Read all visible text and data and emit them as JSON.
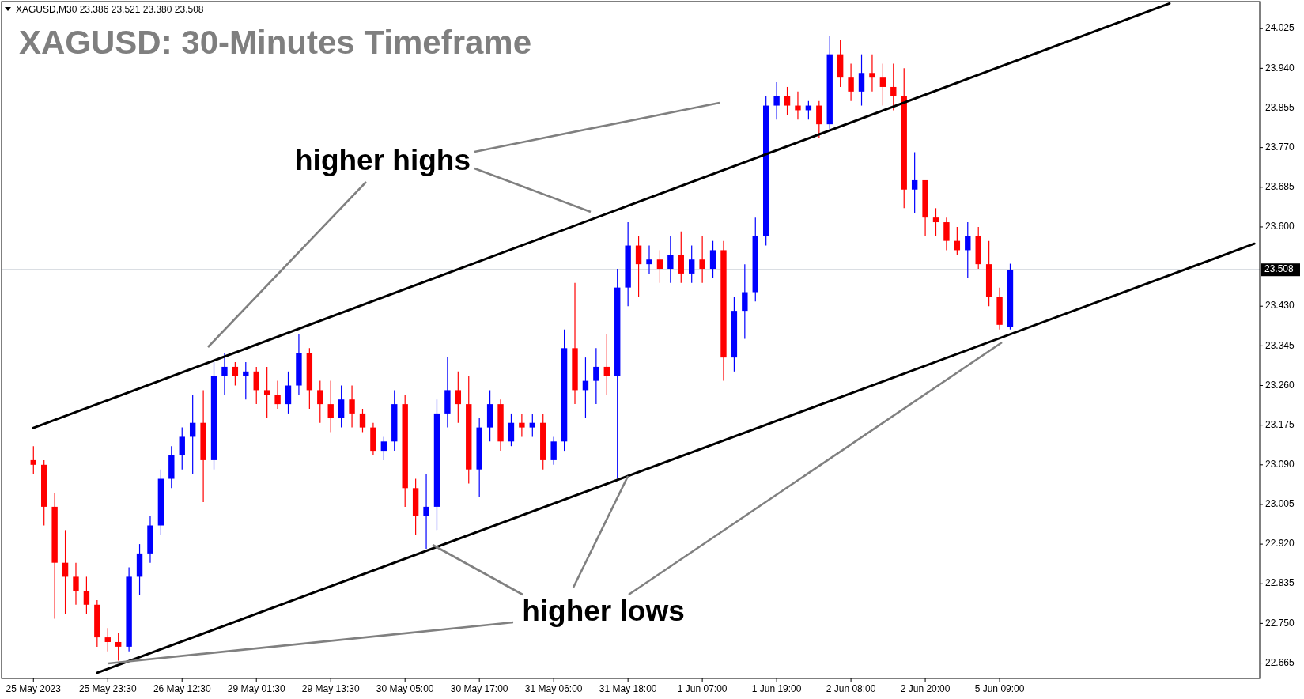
{
  "chart_data": {
    "type": "candlestick",
    "title": "XAGUSD: 30-Minutes Timeframe",
    "annotations": [
      "XAGUSD,M30  23.386 23.521 23.380 23.508",
      "higher highs",
      {
        "text": "higher lows",
        "x": "31 May 18:00",
        "y": 23.066
      }
    ],
    "categories": [
      "25 May 2023",
      null,
      null,
      null,
      null,
      null,
      null,
      "25 May 23:30",
      null,
      null,
      null,
      null,
      null,
      null,
      "26 May 12:30",
      null,
      null,
      null,
      null,
      null,
      null,
      "29 May 01:30",
      null,
      null,
      null,
      null,
      null,
      null,
      "29 May 13:30",
      null,
      null,
      null,
      null,
      null,
      null,
      "30 May 05:00",
      null,
      null,
      null,
      null,
      null,
      null,
      "30 May 17:00",
      null,
      null,
      null,
      null,
      null,
      null,
      "31 May 06:00",
      null,
      null,
      null,
      null,
      null,
      null,
      "31 May 18:00",
      null,
      null,
      null,
      null,
      null,
      null,
      "1 Jun 07:00",
      null,
      null,
      null,
      null,
      null,
      null,
      "1 Jun 19:00",
      null,
      null,
      null,
      null,
      null,
      null,
      "2 Jun 08:00",
      null,
      null,
      null,
      null,
      null,
      null,
      "2 Jun 20:00",
      null,
      null,
      null,
      null,
      null,
      null,
      "5 Jun 09:00",
      null,
      null,
      null,
      null,
      null,
      null,
      null,
      null,
      null,
      null,
      null,
      null,
      null,
      null,
      null,
      null,
      null,
      null,
      null,
      null,
      null,
      null,
      null,
      null
    ],
    "ohlc": [
      [
        23.1,
        23.13,
        23.07,
        23.09
      ],
      [
        23.09,
        23.1,
        22.96,
        23.0
      ],
      [
        23.0,
        23.03,
        22.76,
        22.88
      ],
      [
        22.88,
        22.95,
        22.77,
        22.85
      ],
      [
        22.85,
        22.88,
        22.79,
        22.82
      ],
      [
        22.82,
        22.85,
        22.77,
        22.79
      ],
      [
        22.79,
        22.8,
        22.7,
        22.72
      ],
      [
        22.72,
        22.74,
        22.69,
        22.71
      ],
      [
        22.71,
        22.73,
        22.67,
        22.7
      ],
      [
        22.7,
        22.87,
        22.69,
        22.85
      ],
      [
        22.85,
        22.92,
        22.81,
        22.9
      ],
      [
        22.9,
        22.98,
        22.88,
        22.96
      ],
      [
        22.96,
        23.08,
        22.94,
        23.06
      ],
      [
        23.06,
        23.13,
        23.04,
        23.11
      ],
      [
        23.11,
        23.17,
        23.08,
        23.15
      ],
      [
        23.15,
        23.24,
        23.07,
        23.18
      ],
      [
        23.18,
        23.25,
        23.01,
        23.1
      ],
      [
        23.1,
        23.31,
        23.08,
        23.28
      ],
      [
        23.28,
        23.33,
        23.24,
        23.3
      ],
      [
        23.3,
        23.31,
        23.26,
        23.28
      ],
      [
        23.28,
        23.31,
        23.23,
        23.29
      ],
      [
        23.29,
        23.3,
        23.22,
        23.25
      ],
      [
        23.25,
        23.3,
        23.19,
        23.24
      ],
      [
        23.24,
        23.27,
        23.21,
        23.22
      ],
      [
        23.22,
        23.29,
        23.2,
        23.26
      ],
      [
        23.26,
        23.37,
        23.24,
        23.33
      ],
      [
        23.33,
        23.34,
        23.21,
        23.25
      ],
      [
        23.25,
        23.27,
        23.18,
        23.22
      ],
      [
        23.22,
        23.27,
        23.16,
        23.19
      ],
      [
        23.19,
        23.26,
        23.17,
        23.23
      ],
      [
        23.23,
        23.26,
        23.17,
        23.2
      ],
      [
        23.2,
        23.21,
        23.16,
        23.17
      ],
      [
        23.17,
        23.18,
        23.11,
        23.12
      ],
      [
        23.12,
        23.15,
        23.1,
        23.14
      ],
      [
        23.14,
        23.25,
        23.12,
        23.22
      ],
      [
        23.22,
        23.24,
        23.0,
        23.04
      ],
      [
        23.04,
        23.06,
        22.94,
        22.98
      ],
      [
        22.98,
        23.07,
        22.91,
        23.0
      ],
      [
        23.0,
        23.23,
        22.95,
        23.2
      ],
      [
        23.2,
        23.32,
        23.17,
        23.25
      ],
      [
        23.25,
        23.29,
        23.18,
        23.22
      ],
      [
        23.22,
        23.28,
        23.05,
        23.08
      ],
      [
        23.08,
        23.19,
        23.02,
        23.17
      ],
      [
        23.17,
        23.25,
        23.14,
        23.22
      ],
      [
        23.22,
        23.23,
        23.12,
        23.14
      ],
      [
        23.14,
        23.2,
        23.13,
        23.18
      ],
      [
        23.18,
        23.2,
        23.15,
        23.17
      ],
      [
        23.17,
        23.2,
        23.15,
        23.18
      ],
      [
        23.18,
        23.2,
        23.08,
        23.1
      ],
      [
        23.1,
        23.15,
        23.09,
        23.14
      ],
      [
        23.14,
        23.38,
        23.12,
        23.34
      ],
      [
        23.34,
        23.48,
        23.22,
        23.25
      ],
      [
        23.25,
        23.32,
        23.19,
        23.27
      ],
      [
        23.27,
        23.34,
        23.22,
        23.3
      ],
      [
        23.3,
        23.37,
        23.24,
        23.28
      ],
      [
        23.28,
        23.51,
        23.06,
        23.47
      ],
      [
        23.47,
        23.61,
        23.43,
        23.56
      ],
      [
        23.56,
        23.58,
        23.45,
        23.52
      ],
      [
        23.52,
        23.56,
        23.5,
        23.53
      ],
      [
        23.53,
        23.55,
        23.48,
        23.51
      ],
      [
        23.51,
        23.58,
        23.48,
        23.54
      ],
      [
        23.54,
        23.59,
        23.48,
        23.5
      ],
      [
        23.5,
        23.56,
        23.48,
        23.53
      ],
      [
        23.53,
        23.58,
        23.48,
        23.51
      ],
      [
        23.51,
        23.57,
        23.49,
        23.55
      ],
      [
        23.55,
        23.57,
        23.27,
        23.32
      ],
      [
        23.32,
        23.45,
        23.29,
        23.42
      ],
      [
        23.42,
        23.52,
        23.36,
        23.46
      ],
      [
        23.46,
        23.62,
        23.44,
        23.58
      ],
      [
        23.58,
        23.88,
        23.56,
        23.86
      ],
      [
        23.86,
        23.91,
        23.83,
        23.88
      ],
      [
        23.88,
        23.9,
        23.84,
        23.86
      ],
      [
        23.86,
        23.89,
        23.83,
        23.85
      ],
      [
        23.85,
        23.87,
        23.83,
        23.86
      ],
      [
        23.86,
        23.87,
        23.79,
        23.82
      ],
      [
        23.82,
        24.01,
        23.81,
        23.97
      ],
      [
        23.97,
        24.0,
        23.9,
        23.92
      ],
      [
        23.92,
        23.95,
        23.87,
        23.89
      ],
      [
        23.89,
        23.97,
        23.86,
        23.93
      ],
      [
        23.93,
        23.97,
        23.89,
        23.92
      ],
      [
        23.92,
        23.95,
        23.86,
        23.9
      ],
      [
        23.9,
        23.95,
        23.85,
        23.88
      ],
      [
        23.88,
        23.94,
        23.64,
        23.68
      ],
      [
        23.68,
        23.76,
        23.63,
        23.7
      ],
      [
        23.7,
        23.7,
        23.58,
        23.62
      ],
      [
        23.62,
        23.64,
        23.58,
        23.61
      ],
      [
        23.61,
        23.62,
        23.55,
        23.57
      ],
      [
        23.57,
        23.6,
        23.54,
        23.55
      ],
      [
        23.55,
        23.61,
        23.49,
        23.58
      ],
      [
        23.58,
        23.6,
        23.51,
        23.52
      ],
      [
        23.52,
        23.57,
        23.43,
        23.45
      ],
      [
        23.45,
        23.47,
        23.38,
        23.39
      ],
      [
        23.386,
        23.521,
        23.38,
        23.508
      ],
      null,
      null,
      null,
      null,
      null,
      null,
      null,
      null,
      null,
      null,
      null,
      null,
      null,
      null,
      null,
      null,
      null,
      null,
      null,
      null,
      null,
      null,
      null
    ],
    "colors": [
      "#ff0000",
      "#ff0000",
      "#ff0000",
      "#ff0000",
      "#ff0000",
      "#ff0000",
      "#ff0000",
      "#ff0000",
      "#ff0000",
      "#0000ff",
      "#0000ff",
      "#0000ff",
      "#0000ff",
      "#0000ff",
      "#0000ff",
      "#0000ff",
      "#ff0000",
      "#0000ff",
      "#0000ff",
      "#ff0000",
      "#0000ff",
      "#ff0000",
      "#ff0000",
      "#ff0000",
      "#0000ff",
      "#0000ff",
      "#ff0000",
      "#ff0000",
      "#ff0000",
      "#0000ff",
      "#ff0000",
      "#ff0000",
      "#ff0000",
      "#0000ff",
      "#0000ff",
      "#ff0000",
      "#ff0000",
      "#0000ff",
      "#0000ff",
      "#0000ff",
      "#ff0000",
      "#ff0000",
      "#0000ff",
      "#0000ff",
      "#ff0000",
      "#0000ff",
      "#ff0000",
      "#0000ff",
      "#ff0000",
      "#0000ff",
      "#0000ff",
      "#ff0000",
      "#0000ff",
      "#0000ff",
      "#ff0000",
      "#0000ff",
      "#0000ff",
      "#ff0000",
      "#0000ff",
      "#ff0000",
      "#0000ff",
      "#ff0000",
      "#0000ff",
      "#ff0000",
      "#0000ff",
      "#ff0000",
      "#0000ff",
      "#0000ff",
      "#0000ff",
      "#0000ff",
      "#0000ff",
      "#ff0000",
      "#ff0000",
      "#0000ff",
      "#ff0000",
      "#0000ff",
      "#ff0000",
      "#ff0000",
      "#0000ff",
      "#ff0000",
      "#ff0000",
      "#ff0000",
      "#ff0000",
      "#0000ff",
      "#ff0000",
      "#ff0000",
      "#ff0000",
      "#ff0000",
      "#0000ff",
      "#ff0000",
      "#ff0000",
      "#ff0000",
      "#0000ff",
      null,
      null,
      null,
      null,
      null,
      null,
      null,
      null,
      null,
      null,
      null,
      null,
      null,
      null,
      null,
      null,
      null,
      null,
      null,
      null,
      null,
      null,
      null
    ],
    "series": [
      {
        "type": "line",
        "values": [
          23.169,
          null,
          null,
          null,
          null,
          null,
          null,
          null,
          null,
          null,
          null,
          null,
          null,
          null,
          null,
          null,
          null,
          null,
          null,
          null,
          null,
          null,
          null,
          null,
          null,
          null,
          null,
          null,
          null,
          null,
          null,
          null,
          null,
          null,
          null,
          null,
          null,
          null,
          null,
          null,
          null,
          null,
          null,
          null,
          null,
          null,
          null,
          null,
          null,
          null,
          null,
          null,
          null,
          null,
          null,
          null,
          null,
          null,
          null,
          null,
          null,
          null,
          null,
          null,
          null,
          null,
          null,
          null,
          null,
          null,
          null,
          null,
          null,
          null,
          null,
          null,
          null,
          null,
          null,
          null,
          null,
          null,
          null,
          null,
          null,
          null,
          null,
          null,
          null,
          null,
          null,
          null,
          null,
          null,
          null,
          null,
          null,
          null,
          null,
          null,
          null,
          null,
          null,
          null,
          null,
          null,
          null,
          24.079,
          null,
          null,
          null,
          null,
          null,
          null,
          null,
          null
        ],
        "color": "#000000"
      },
      {
        "type": "line",
        "values": [
          null,
          null,
          null,
          null,
          null,
          null,
          22.644,
          null,
          null,
          null,
          null,
          null,
          null,
          null,
          null,
          null,
          null,
          null,
          null,
          null,
          null,
          null,
          null,
          null,
          null,
          null,
          null,
          null,
          null,
          null,
          null,
          null,
          null,
          null,
          null,
          null,
          null,
          null,
          null,
          null,
          null,
          null,
          null,
          null,
          null,
          null,
          null,
          null,
          null,
          null,
          null,
          null,
          null,
          null,
          null,
          null,
          null,
          null,
          null,
          null,
          null,
          null,
          null,
          null,
          null,
          null,
          null,
          null,
          null,
          null,
          null,
          null,
          null,
          null,
          null,
          null,
          null,
          null,
          null,
          null,
          null,
          null,
          null,
          null,
          null,
          null,
          null,
          null,
          null,
          null,
          null,
          null,
          null,
          null,
          null,
          null,
          null,
          null,
          null,
          null,
          null,
          null,
          null,
          null,
          null,
          null,
          null,
          null,
          null,
          null,
          null,
          null,
          null,
          null,
          null,
          23.564
        ],
        "color": "#000000"
      }
    ],
    "ylim": [
      22.632,
      24.083
    ],
    "yticks": [
      22.665,
      {
        "value": 22.75,
        "label": "22.750"
      },
      22.835,
      {
        "value": 22.92,
        "label": "22.920"
      },
      23.005,
      {
        "value": 23.09,
        "label": "23.090"
      },
      23.175,
      {
        "value": 23.26,
        "label": "23.260"
      },
      23.345,
      {
        "value": 23.43,
        "label": "23.430"
      },
      {
        "value": 23.6,
        "label": "23.600"
      },
      23.685,
      {
        "value": 23.77,
        "label": "23.770"
      },
      23.855,
      {
        "value": 23.94,
        "label": "23.940"
      },
      24.025
    ],
    "ref_lines": [
      {
        "axis": "y",
        "value": 23.508,
        "label": "23.508",
        "color": "#8090a0"
      }
    ]
  }
}
